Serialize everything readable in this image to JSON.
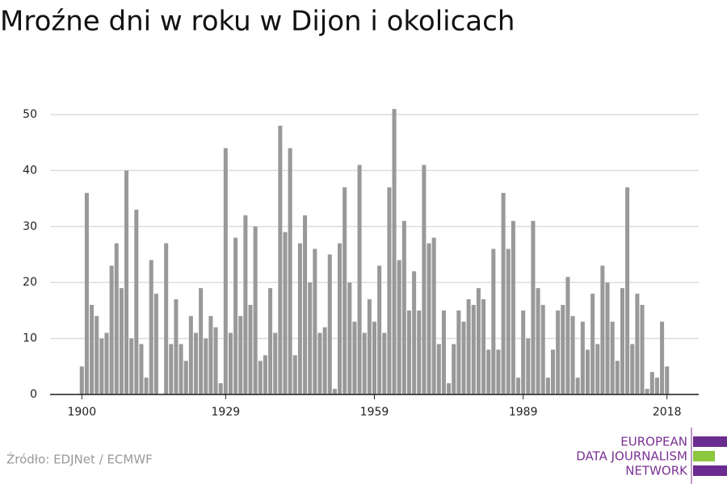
{
  "chart_data": {
    "type": "bar",
    "title": "Mroźne dni w roku w Dijon i okolicach",
    "x": [
      1900,
      1901,
      1902,
      1903,
      1904,
      1905,
      1906,
      1907,
      1908,
      1909,
      1910,
      1911,
      1912,
      1913,
      1914,
      1915,
      1916,
      1917,
      1918,
      1919,
      1920,
      1921,
      1922,
      1923,
      1924,
      1925,
      1926,
      1927,
      1928,
      1929,
      1930,
      1931,
      1932,
      1933,
      1934,
      1935,
      1936,
      1937,
      1938,
      1939,
      1940,
      1941,
      1942,
      1943,
      1944,
      1945,
      1946,
      1947,
      1948,
      1949,
      1950,
      1951,
      1952,
      1953,
      1954,
      1955,
      1956,
      1957,
      1958,
      1959,
      1960,
      1961,
      1962,
      1963,
      1964,
      1965,
      1966,
      1967,
      1968,
      1969,
      1970,
      1971,
      1972,
      1973,
      1974,
      1975,
      1976,
      1977,
      1978,
      1979,
      1980,
      1981,
      1982,
      1983,
      1984,
      1985,
      1986,
      1987,
      1988,
      1989,
      1990,
      1991,
      1992,
      1993,
      1994,
      1995,
      1996,
      1997,
      1998,
      1999,
      2000,
      2001,
      2002,
      2003,
      2004,
      2005,
      2006,
      2007,
      2008,
      2009,
      2010,
      2011,
      2012,
      2013,
      2014,
      2015,
      2016,
      2017,
      2018
    ],
    "values": [
      5,
      36,
      16,
      14,
      10,
      11,
      23,
      27,
      19,
      40,
      10,
      33,
      9,
      3,
      24,
      18,
      0,
      27,
      9,
      17,
      9,
      6,
      14,
      11,
      19,
      10,
      14,
      12,
      2,
      44,
      11,
      28,
      14,
      32,
      16,
      30,
      6,
      7,
      19,
      11,
      48,
      29,
      44,
      7,
      27,
      32,
      20,
      26,
      11,
      12,
      25,
      1,
      27,
      37,
      20,
      13,
      41,
      11,
      17,
      13,
      23,
      11,
      37,
      51,
      24,
      31,
      15,
      22,
      15,
      41,
      27,
      28,
      9,
      15,
      2,
      9,
      15,
      13,
      17,
      16,
      19,
      17,
      8,
      26,
      8,
      36,
      26,
      31,
      3,
      15,
      10,
      31,
      19,
      16,
      3,
      8,
      15,
      16,
      21,
      14,
      3,
      13,
      8,
      18,
      9,
      23,
      20,
      13,
      6,
      19,
      37,
      9,
      18,
      16,
      1,
      4,
      3,
      13,
      5
    ],
    "color": "#999999",
    "xlim": [
      1893.6,
      2024.4
    ],
    "xticks": [
      1900,
      1929,
      1959,
      1989,
      2018
    ],
    "ylim": [
      0,
      50
    ],
    "yticks": [
      0,
      10,
      20,
      30,
      40,
      50
    ],
    "grid": true
  },
  "source": "Źródło: EDJNet / ECMWF",
  "logo": {
    "lines": [
      "EUROPEAN",
      "DATA JOURNALISM",
      "NETWORK"
    ]
  }
}
